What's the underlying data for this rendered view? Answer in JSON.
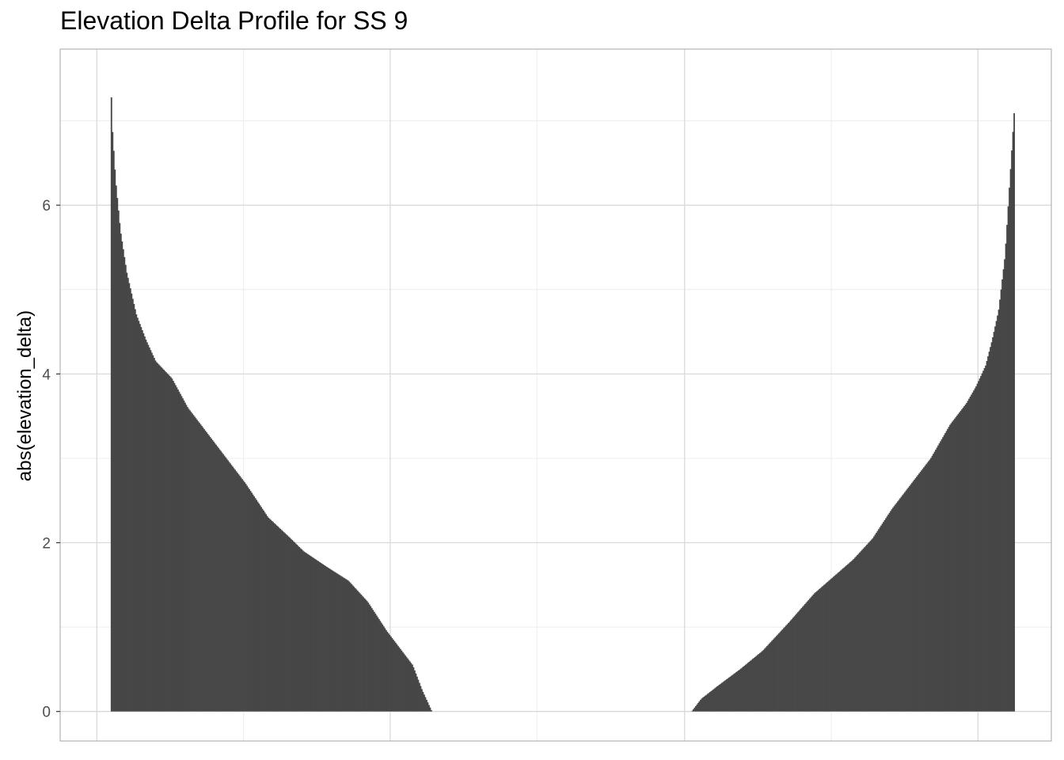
{
  "chart_data": {
    "type": "bar",
    "title": "Elevation Delta Profile for SS 9",
    "xlabel": "",
    "ylabel": "abs(elevation_delta)",
    "ylim": [
      -0.35,
      7.85
    ],
    "xlim": [
      0,
      1
    ],
    "grid": true,
    "legend": "none",
    "bar_color": "#474747",
    "panel_border_color": "#b3b3b3",
    "grid_major_color": "#d9d9d9",
    "grid_minor_color": "#ececec",
    "y_ticks": [
      {
        "value": 0,
        "label": "0"
      },
      {
        "value": 2,
        "label": "2"
      },
      {
        "value": 4,
        "label": "4"
      },
      {
        "value": 6,
        "label": "6"
      }
    ],
    "y_minor_ticks": [
      1,
      3,
      5,
      7
    ],
    "x_major_ticks": [
      0.037,
      0.333,
      0.63,
      0.926
    ],
    "x_minor_ticks": [
      0.185,
      0.481,
      0.778
    ],
    "series": [
      {
        "segment": "decreasing",
        "x_range": [
          0.051,
          0.375
        ],
        "profile": [
          [
            0,
            7.5
          ],
          [
            0.005,
            6.9
          ],
          [
            0.015,
            6.3
          ],
          [
            0.03,
            5.7
          ],
          [
            0.05,
            5.2
          ],
          [
            0.08,
            4.7
          ],
          [
            0.11,
            4.4
          ],
          [
            0.14,
            4.15
          ],
          [
            0.19,
            3.95
          ],
          [
            0.24,
            3.6
          ],
          [
            0.3,
            3.3
          ],
          [
            0.35,
            3.05
          ],
          [
            0.42,
            2.7
          ],
          [
            0.49,
            2.3
          ],
          [
            0.56,
            2.05
          ],
          [
            0.6,
            1.9
          ],
          [
            0.67,
            1.72
          ],
          [
            0.74,
            1.55
          ],
          [
            0.8,
            1.3
          ],
          [
            0.86,
            0.95
          ],
          [
            0.9,
            0.75
          ],
          [
            0.94,
            0.55
          ],
          [
            0.97,
            0.25
          ],
          [
            1.0,
            0.0
          ]
        ]
      },
      {
        "segment": "increasing",
        "x_range": [
          0.637,
          0.963
        ],
        "profile": [
          [
            0,
            0.0
          ],
          [
            0.03,
            0.15
          ],
          [
            0.08,
            0.3
          ],
          [
            0.15,
            0.5
          ],
          [
            0.22,
            0.72
          ],
          [
            0.3,
            1.05
          ],
          [
            0.38,
            1.4
          ],
          [
            0.44,
            1.6
          ],
          [
            0.5,
            1.8
          ],
          [
            0.56,
            2.05
          ],
          [
            0.62,
            2.4
          ],
          [
            0.68,
            2.7
          ],
          [
            0.74,
            3.0
          ],
          [
            0.8,
            3.4
          ],
          [
            0.85,
            3.65
          ],
          [
            0.88,
            3.85
          ],
          [
            0.91,
            4.1
          ],
          [
            0.93,
            4.4
          ],
          [
            0.95,
            4.75
          ],
          [
            0.97,
            5.4
          ],
          [
            0.985,
            6.3
          ],
          [
            1.0,
            7.2
          ]
        ]
      }
    ]
  }
}
